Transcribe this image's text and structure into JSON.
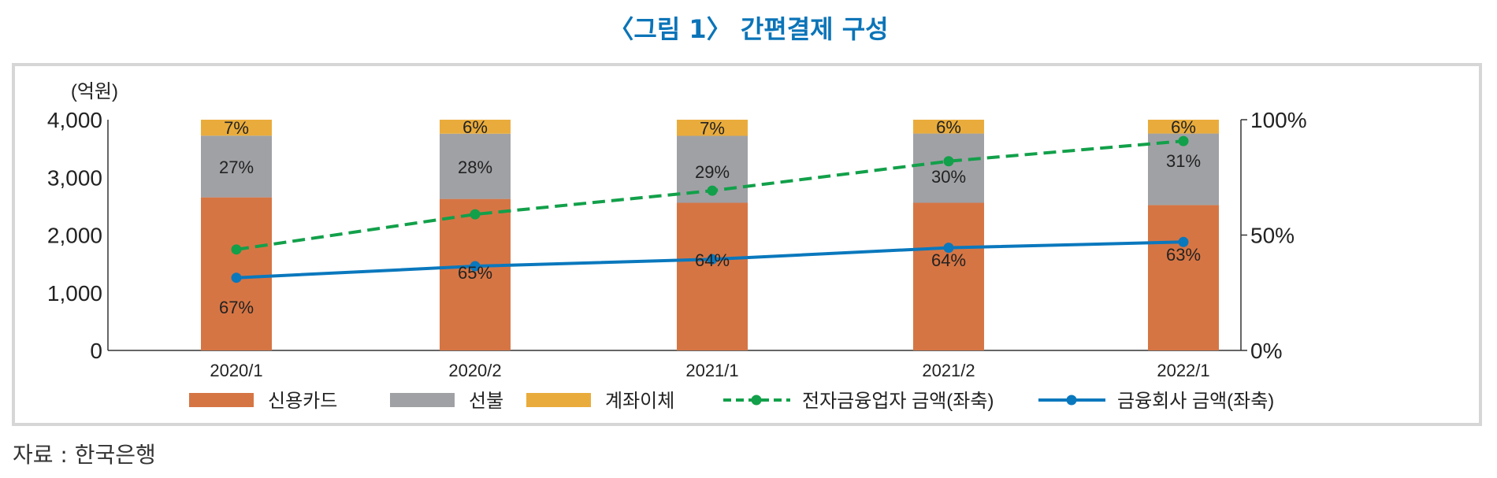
{
  "title": "〈그림 1〉 간편결제 구성",
  "source": "자료 : 한국은행",
  "chart_data": {
    "type": "bar",
    "stacked": "100% stacked bars (right axis) with lines (left axis)",
    "categories": [
      "2020/1",
      "2020/2",
      "2021/1",
      "2021/2",
      "2022/1"
    ],
    "left_axis": {
      "unit_label": "(억원)",
      "ylim": [
        0,
        4000
      ],
      "ticks": [
        "0",
        "1,000",
        "2,000",
        "3,000",
        "4,000"
      ]
    },
    "right_axis": {
      "ylim": [
        0,
        100
      ],
      "ticks": [
        "0%",
        "50%",
        "100%"
      ]
    },
    "bar_series": [
      {
        "name": "신용카드",
        "color": "#d67544",
        "values": [
          67,
          65,
          64,
          64,
          63
        ],
        "labels": [
          "67%",
          "65%",
          "64%",
          "64%",
          "63%"
        ]
      },
      {
        "name": "선불",
        "color": "#a0a1a5",
        "values": [
          27,
          28,
          29,
          30,
          31
        ],
        "labels": [
          "27%",
          "28%",
          "29%",
          "30%",
          "31%"
        ]
      },
      {
        "name": "계좌이체",
        "color": "#e9ac3c",
        "values": [
          7,
          6,
          7,
          6,
          6
        ],
        "labels": [
          "7%",
          "6%",
          "7%",
          "6%",
          "6%"
        ]
      }
    ],
    "line_series": [
      {
        "name": "전자금융업자 금액(좌축)",
        "color": "#12a04a",
        "dashed": true,
        "values": [
          1750,
          2360,
          2770,
          3280,
          3630
        ]
      },
      {
        "name": "금융회사 금액(좌축)",
        "color": "#0a78bd",
        "dashed": false,
        "values": [
          1260,
          1460,
          1580,
          1780,
          1880
        ]
      }
    ],
    "legend": "bottom",
    "grid": false
  }
}
